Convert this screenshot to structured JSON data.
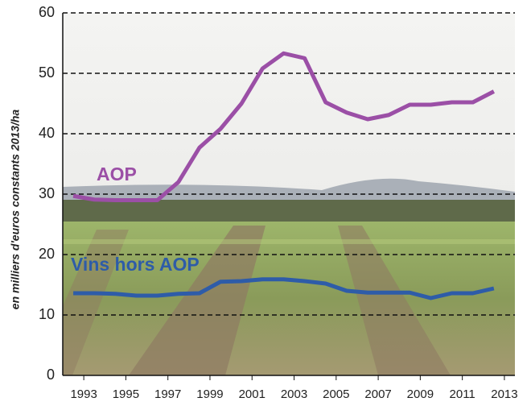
{
  "chart_data": {
    "type": "line",
    "y_label": "en milliers d'euros constants 2013/ha",
    "x": [
      1992.5,
      1993.5,
      1994.5,
      1995.5,
      1996.5,
      1997.5,
      1998.5,
      1999.5,
      2000.5,
      2001.5,
      2002.5,
      2003.5,
      2004.5,
      2005.5,
      2006.5,
      2007.5,
      2008.5,
      2009.5,
      2010.5,
      2011.5,
      2012.5
    ],
    "series": [
      {
        "name": "AOP",
        "color": "#9b4fa6",
        "values": [
          29.7,
          29.1,
          29,
          29,
          29,
          32,
          37.7,
          40.8,
          45,
          50.8,
          53.3,
          52.5,
          45.2,
          43.5,
          42.4,
          43.1,
          44.8,
          44.8,
          45.2,
          45.2,
          47
        ]
      },
      {
        "name": "Vins hors AOP",
        "color": "#2e5ca8",
        "values": [
          13.6,
          13.6,
          13.5,
          13.2,
          13.2,
          13.5,
          13.6,
          15.5,
          15.6,
          15.9,
          15.9,
          15.6,
          15.2,
          14,
          13.7,
          13.7,
          13.7,
          12.8,
          13.6,
          13.6,
          14.4
        ]
      }
    ],
    "xlim": [
      1992,
      2013.5
    ],
    "xticks": [
      1993,
      1995,
      1997,
      1999,
      2001,
      2003,
      2005,
      2007,
      2009,
      2011,
      2013
    ],
    "ylim": [
      0,
      60
    ],
    "yticks": [
      0,
      10,
      20,
      30,
      40,
      50,
      60
    ],
    "grid": true
  }
}
